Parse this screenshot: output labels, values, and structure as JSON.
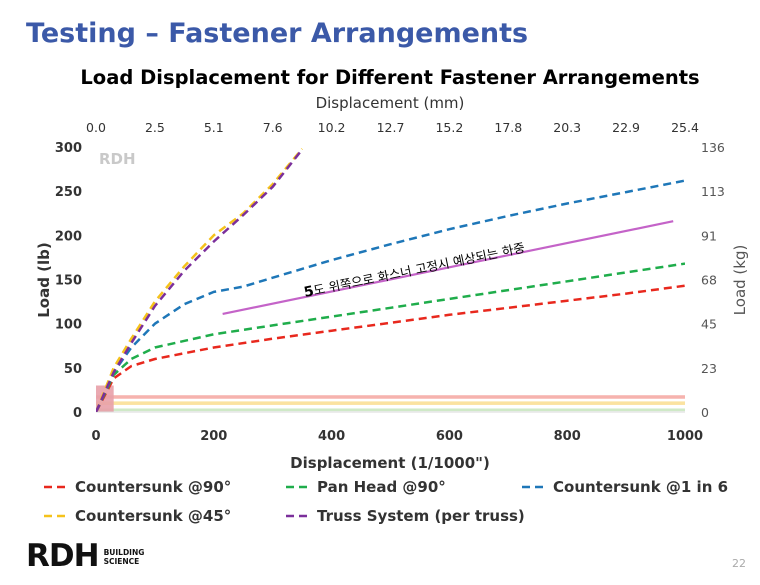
{
  "slide": {
    "title": "Testing – Fastener Arrangements",
    "page_number": "22"
  },
  "logo": {
    "mark": "RDH",
    "sub_line1": "BUILDING",
    "sub_line2": "SCIENCE"
  },
  "chart_data": {
    "type": "line",
    "title": "Load Displacement for Different Fastener Arrangements",
    "xlabel": "Displacement (1/1000\")",
    "ylabel": "Load (lb)",
    "x2label": "Displacement (mm)",
    "y2label": "Load (kg)",
    "xlim": [
      0,
      1000
    ],
    "ylim": [
      0,
      300
    ],
    "x_ticks": [
      "0",
      "200",
      "400",
      "600",
      "800",
      "1000"
    ],
    "x_tick_values": [
      0,
      200,
      400,
      600,
      800,
      1000
    ],
    "y_ticks": [
      "0",
      "50",
      "100",
      "150",
      "200",
      "250",
      "300"
    ],
    "y_tick_values": [
      0,
      50,
      100,
      150,
      200,
      250,
      300
    ],
    "x2_ticks": [
      "0.0",
      "2.5",
      "5.1",
      "7.6",
      "10.2",
      "12.7",
      "15.2",
      "17.8",
      "20.3",
      "22.9",
      "25.4"
    ],
    "x2_tick_values": [
      0,
      100,
      200,
      300,
      400,
      500,
      600,
      700,
      800,
      900,
      1000
    ],
    "y2_ticks": [
      "0",
      "23",
      "45",
      "68",
      "91",
      "113",
      "136"
    ],
    "y2_tick_values": [
      0,
      50,
      100,
      150,
      200,
      250,
      300
    ],
    "watermark": "RDH",
    "series": [
      {
        "name": "Countersunk @90°",
        "color": "#e8281d",
        "x": [
          0,
          30,
          60,
          100,
          200,
          300,
          400,
          500,
          600,
          700,
          800,
          900,
          1000
        ],
        "y": [
          0,
          38,
          52,
          60,
          73,
          83,
          92,
          101,
          110,
          118,
          126,
          134,
          143
        ]
      },
      {
        "name": "Pan Head @90°",
        "color": "#1fad4b",
        "x": [
          0,
          30,
          60,
          100,
          200,
          300,
          400,
          500,
          600,
          700,
          800,
          900,
          1000
        ],
        "y": [
          0,
          42,
          60,
          73,
          88,
          98,
          108,
          118,
          128,
          138,
          148,
          158,
          168
        ]
      },
      {
        "name": "Countersunk @1 in 6",
        "color": "#1e77b8",
        "x": [
          0,
          30,
          60,
          100,
          150,
          200,
          250,
          300,
          400,
          500,
          600,
          700,
          800,
          900,
          1000
        ],
        "y": [
          0,
          45,
          73,
          100,
          122,
          136,
          142,
          152,
          172,
          190,
          207,
          222,
          236,
          249,
          262
        ]
      },
      {
        "name": "Countersunk @45°",
        "color": "#f5c21b",
        "x": [
          0,
          30,
          60,
          100,
          150,
          200,
          250,
          300,
          350
        ],
        "y": [
          0,
          50,
          83,
          125,
          165,
          200,
          225,
          258,
          298
        ]
      },
      {
        "name": "Truss System (per truss)",
        "color": "#7b2f9b",
        "x": [
          0,
          30,
          60,
          100,
          150,
          200,
          250,
          300,
          350
        ],
        "y": [
          0,
          45,
          78,
          120,
          160,
          193,
          223,
          255,
          297
        ]
      }
    ],
    "annotation": {
      "prefix": "5",
      "text": "도 위쪽으로 화스너 고정시 예상되는 하중",
      "color": "#c463c8",
      "x": [
        215,
        980
      ],
      "y": [
        111,
        216
      ]
    },
    "bands": [
      {
        "name": "red-band",
        "y_range": [
          15,
          19
        ],
        "color": "#f6b3ae"
      },
      {
        "name": "yellow-band",
        "y_range": [
          8,
          12
        ],
        "color": "#fbe3a0"
      },
      {
        "name": "green-band",
        "y_range": [
          1,
          4
        ],
        "color": "#cfe9c7"
      }
    ],
    "highlight_box": {
      "x_range": [
        0,
        30
      ],
      "y_range": [
        0,
        30
      ],
      "color": "#e8a0a8"
    }
  }
}
